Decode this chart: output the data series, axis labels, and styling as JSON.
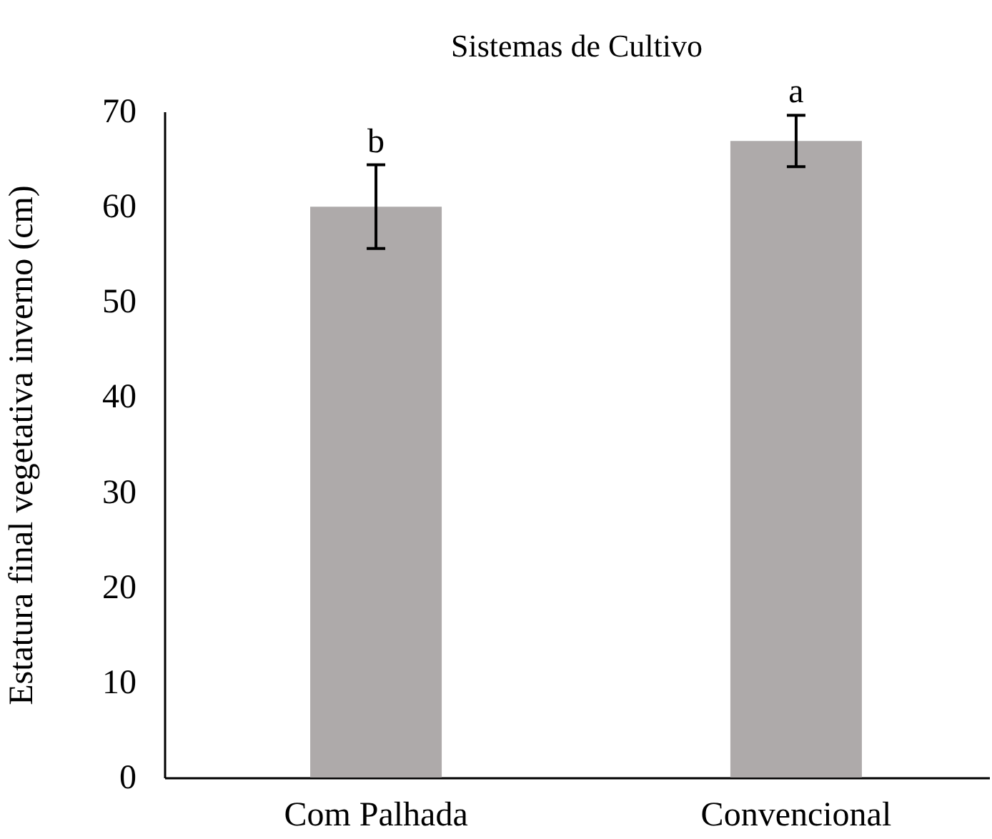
{
  "chart_data": {
    "type": "bar",
    "title": "Sistemas de Cultivo",
    "ylabel": "Estatura final vegetativa inverno (cm)",
    "categories": [
      "Com Palhada",
      "Convencional"
    ],
    "values": [
      60,
      66.9
    ],
    "errors": [
      4.4,
      2.7
    ],
    "color": "#aeaaaa",
    "ylim": [
      0,
      70
    ],
    "yticks": [
      0,
      10,
      20,
      30,
      40,
      50,
      60,
      70
    ],
    "grid": false,
    "annotations": [
      {
        "text": "b",
        "x": "Com Palhada",
        "y": 64.4
      },
      {
        "text": "a",
        "x": "Convencional",
        "y": 69.6
      }
    ]
  }
}
